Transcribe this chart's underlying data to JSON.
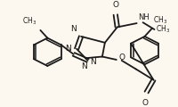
{
  "background_color": "#fcf8f0",
  "line_color": "#1a1a1a",
  "line_width": 1.3,
  "figsize": [
    2.0,
    1.2
  ],
  "dpi": 100,
  "xlim": [
    0,
    200
  ],
  "ylim": [
    0,
    120
  ]
}
